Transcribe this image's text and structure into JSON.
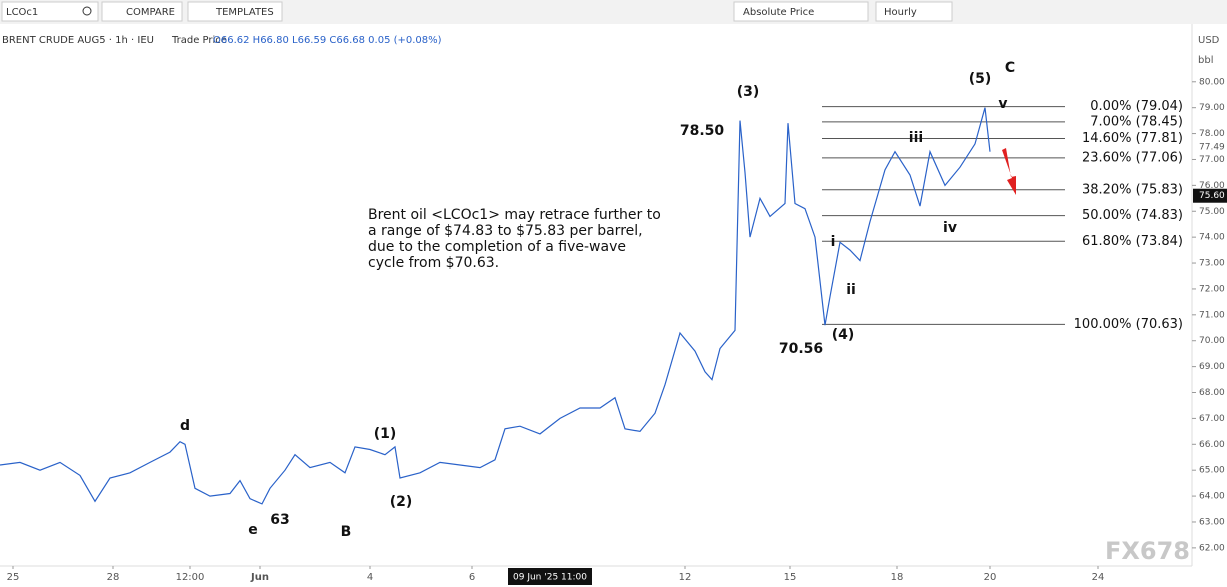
{
  "toolbar": {
    "symbol": "LCOc1",
    "compare": "COMPARE",
    "templates": "TEMPLATES",
    "price_mode": "Absolute Price",
    "interval": "Hourly"
  },
  "legend": {
    "title": "BRENT CRUDE AUG5 · 1h · IEU",
    "price_type": "Trade Price",
    "ohlc": "O66.62 H66.80 L66.59 C66.68 0.05 (+0.08%)"
  },
  "watermark": "FX678",
  "chart_data": {
    "type": "line",
    "color": "#2a62c9",
    "currency": "USD",
    "unit": "bbl",
    "x": [
      0,
      2,
      4,
      6,
      8,
      9.5,
      11,
      13,
      15,
      17,
      18,
      18.5,
      19.5,
      21,
      23,
      24,
      25,
      26.2,
      27,
      28.5,
      29.5,
      31,
      33,
      34.5,
      35.5,
      37,
      38.5,
      39.5,
      40,
      42,
      44,
      46,
      48,
      49.5,
      50.5,
      52,
      54,
      56,
      58,
      60,
      61.5,
      62.5,
      64,
      65.5,
      66.5,
      68,
      69.5,
      70.5,
      71.2,
      72,
      73.5,
      74,
      74.5,
      75,
      76,
      77,
      78.5,
      78.8,
      79.5,
      80.5,
      81.5,
      82.5,
      83,
      84,
      85,
      86,
      87,
      88.5,
      89.5,
      91,
      92,
      93,
      94.5,
      96,
      97.5,
      98.5,
      99
    ],
    "values": [
      65.2,
      65.3,
      65.0,
      65.3,
      64.8,
      63.8,
      64.7,
      64.9,
      65.3,
      65.7,
      66.1,
      66.0,
      64.3,
      64.0,
      64.1,
      64.6,
      63.9,
      63.7,
      64.3,
      65.0,
      65.6,
      65.1,
      65.3,
      64.9,
      65.9,
      65.8,
      65.6,
      65.9,
      64.7,
      64.9,
      65.3,
      65.2,
      65.1,
      65.4,
      66.6,
      66.7,
      66.4,
      67.0,
      67.4,
      67.4,
      67.8,
      66.6,
      66.5,
      67.2,
      68.3,
      70.3,
      69.6,
      68.8,
      68.5,
      69.7,
      70.4,
      78.5,
      76.5,
      74.0,
      75.5,
      74.8,
      75.3,
      78.4,
      75.3,
      75.1,
      74.0,
      70.6,
      71.7,
      73.8,
      73.5,
      73.1,
      74.6,
      76.6,
      77.3,
      76.4,
      75.2,
      77.3,
      76.0,
      76.7,
      77.6,
      79.0,
      77.3
    ],
    "xlim": [
      0,
      119.2
    ],
    "ylim": [
      61.3,
      82.0
    ],
    "xticks": [
      {
        "value": 1.3,
        "label": "25"
      },
      {
        "value": 11.3,
        "label": "28"
      },
      {
        "value": 19,
        "label": "12:00"
      },
      {
        "value": 26,
        "label": "Jun"
      },
      {
        "value": 37,
        "label": "4"
      },
      {
        "value": 47.2,
        "label": "6"
      },
      {
        "value": 68.5,
        "label": "12"
      },
      {
        "value": 79,
        "label": "15"
      },
      {
        "value": 89.7,
        "label": "18"
      },
      {
        "value": 99,
        "label": "20"
      },
      {
        "value": 109.8,
        "label": "24"
      }
    ],
    "cursor_x": {
      "value": 55,
      "label": "09 Jun '25   11:00"
    },
    "yticks": [
      {
        "value": 62,
        "label": "62.00"
      },
      {
        "value": 63,
        "label": "63.00"
      },
      {
        "value": 64,
        "label": "64.00"
      },
      {
        "value": 65,
        "label": "65.00"
      },
      {
        "value": 66,
        "label": "66.00"
      },
      {
        "value": 67,
        "label": "67.00"
      },
      {
        "value": 68,
        "label": "68.00"
      },
      {
        "value": 69,
        "label": "69.00"
      },
      {
        "value": 70,
        "label": "70.00"
      },
      {
        "value": 71,
        "label": "71.00"
      },
      {
        "value": 72,
        "label": "72.00"
      },
      {
        "value": 73,
        "label": "73.00"
      },
      {
        "value": 74,
        "label": "74.00"
      },
      {
        "value": 75,
        "label": "75.00"
      },
      {
        "value": 76,
        "label": "76.00"
      },
      {
        "value": 77,
        "label": "77.00"
      },
      {
        "value": 78,
        "label": "78.00"
      },
      {
        "value": 79,
        "label": "79.00"
      },
      {
        "value": 80,
        "label": "80.00"
      }
    ],
    "last_price": {
      "value": 75.6,
      "label": "75.60"
    },
    "marker_price": 77.49,
    "fib_levels": [
      {
        "value": 79.04,
        "label": "0.00% (79.04)"
      },
      {
        "value": 78.45,
        "label": "7.00% (78.45)"
      },
      {
        "value": 77.81,
        "label": "14.60% (77.81)"
      },
      {
        "value": 77.06,
        "label": "23.60% (77.06)"
      },
      {
        "value": 75.83,
        "label": "38.20% (75.83)"
      },
      {
        "value": 74.83,
        "label": "50.00% (74.83)"
      },
      {
        "value": 73.84,
        "label": "61.80% (73.84)"
      },
      {
        "value": 70.63,
        "label": "100.00% (70.63)"
      }
    ],
    "annotations": [
      "(3)",
      "78.50",
      "(5)",
      "C",
      "v",
      "iii",
      "iv",
      "i",
      "ii",
      "(4)",
      "70.56",
      "d",
      "(1)",
      "(2)",
      "e",
      "63",
      "B"
    ],
    "note": [
      "Brent oil <LCOc1> may retrace further to",
      "a range of $74.83 to $75.83 per barrel,",
      "due to the completion of a five-wave",
      "cycle from $70.63."
    ]
  }
}
